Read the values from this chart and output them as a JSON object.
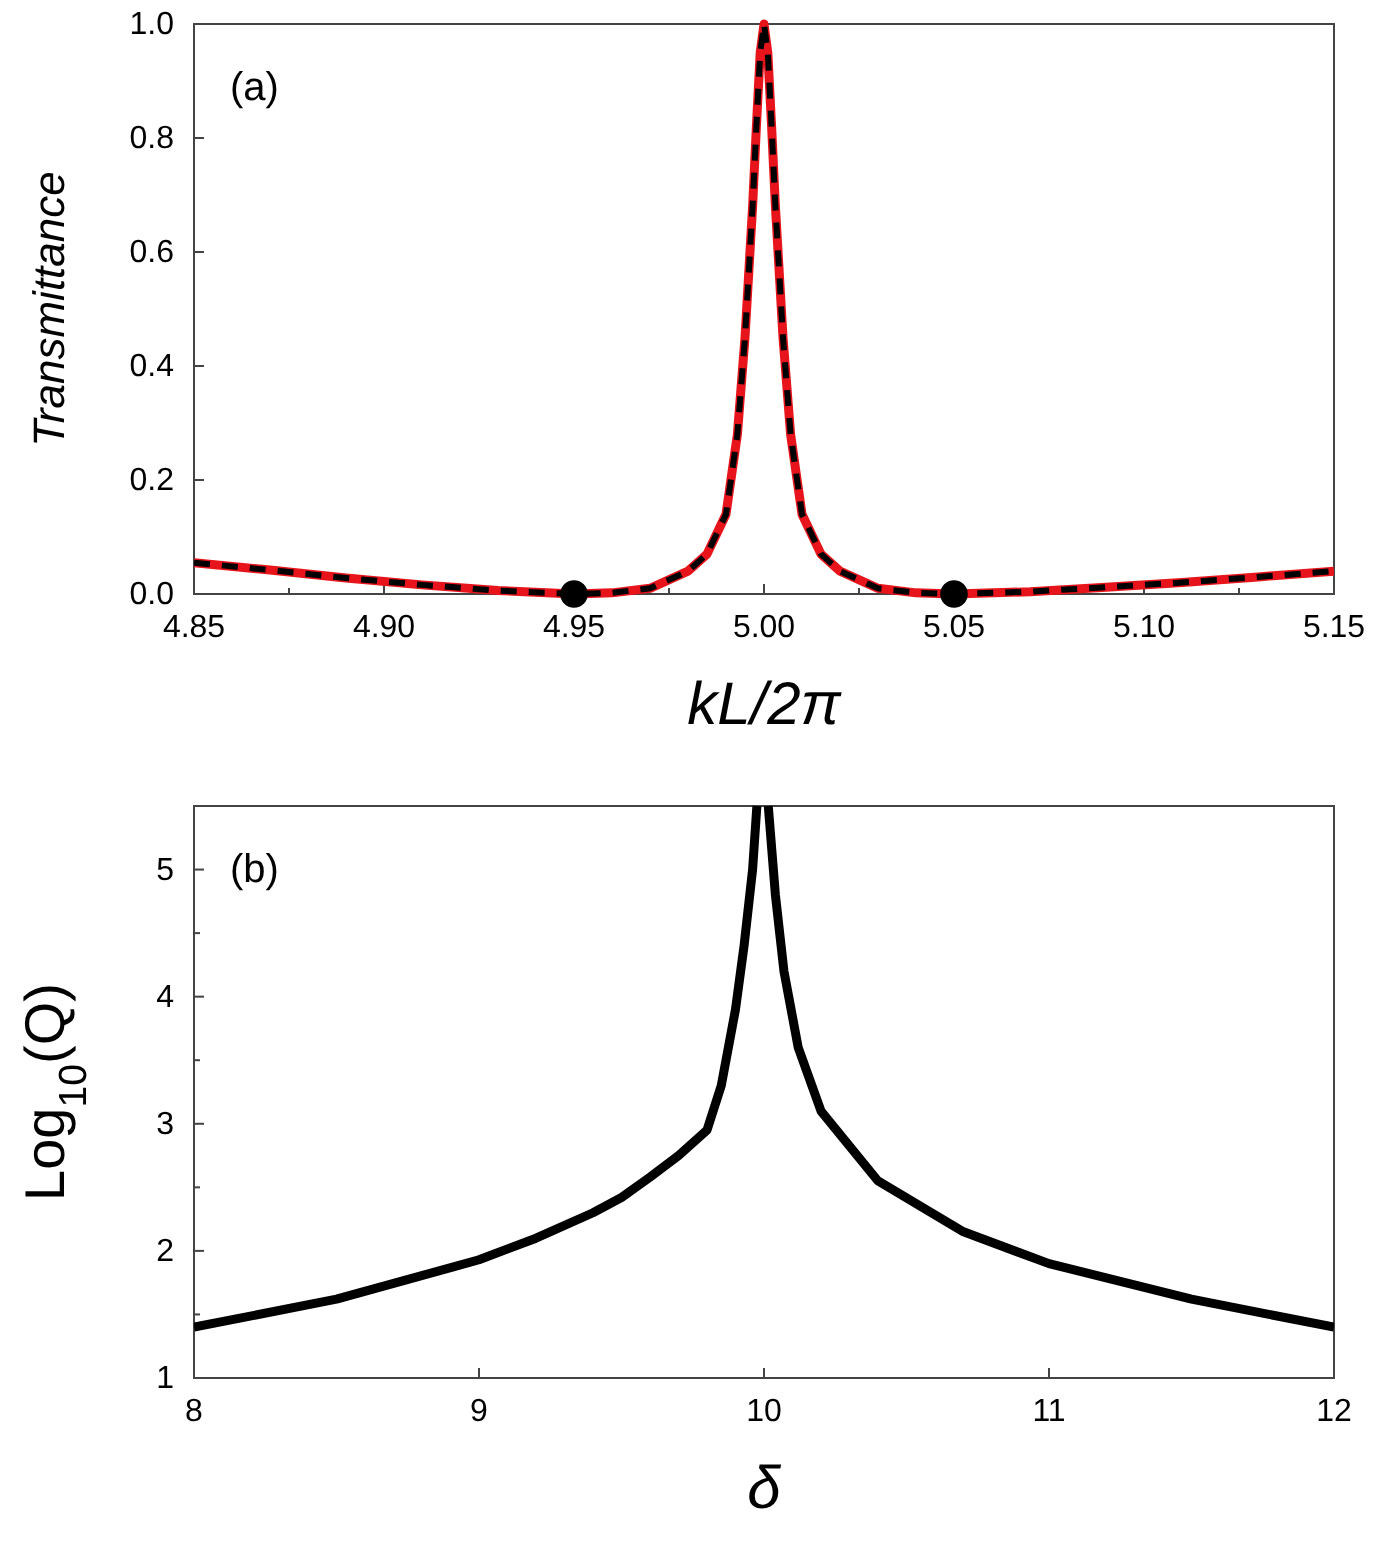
{
  "chart_data": [
    {
      "type": "line",
      "xlabel": "kL/2π",
      "ylabel": "Transmittance",
      "annotations": [
        "(a)"
      ],
      "xlim": [
        4.85,
        5.15
      ],
      "ylim": [
        0,
        1
      ],
      "xticks": [
        {
          "value": 4.85,
          "label": "4.85"
        },
        {
          "value": 4.875,
          "label": null
        },
        {
          "value": 4.9,
          "label": "4.90"
        },
        {
          "value": 4.925,
          "label": null
        },
        {
          "value": 4.95,
          "label": "4.95"
        },
        {
          "value": 4.975,
          "label": null
        },
        {
          "value": 5,
          "label": "5.00"
        },
        {
          "value": 5.025,
          "label": null
        },
        {
          "value": 5.05,
          "label": "5.05"
        },
        {
          "value": 5.075,
          "label": null
        },
        {
          "value": 5.1,
          "label": "5.10"
        },
        {
          "value": 5.125,
          "label": null
        },
        {
          "value": 5.15,
          "label": "5.15"
        }
      ],
      "yticks": [
        {
          "value": 0,
          "label": "0.0"
        },
        {
          "value": 0.2,
          "label": "0.2"
        },
        {
          "value": 0.4,
          "label": "0.4"
        },
        {
          "value": 0.6,
          "label": "0.6"
        },
        {
          "value": 0.8,
          "label": "0.8"
        },
        {
          "value": 1,
          "label": "1.0"
        }
      ],
      "series": [
        {
          "type": "line",
          "color": "#e8141b",
          "line_style": "solid",
          "x": [
            4.85,
            4.87,
            4.89,
            4.91,
            4.93,
            4.95,
            4.96,
            4.97,
            4.98,
            4.985,
            4.99,
            4.993,
            4.995,
            4.997,
            4.998,
            4.999,
            5.0,
            5.001,
            5.002,
            5.003,
            5.005,
            5.007,
            5.01,
            5.015,
            5.02,
            5.03,
            5.04,
            5.05,
            5.07,
            5.09,
            5.11,
            5.13,
            5.15
          ],
          "values": [
            0.055,
            0.042,
            0.028,
            0.016,
            0.006,
            0.0,
            0.002,
            0.01,
            0.04,
            0.07,
            0.14,
            0.28,
            0.45,
            0.68,
            0.82,
            0.95,
            1.0,
            0.95,
            0.82,
            0.68,
            0.45,
            0.28,
            0.14,
            0.07,
            0.04,
            0.01,
            0.002,
            0.0,
            0.004,
            0.012,
            0.02,
            0.03,
            0.04
          ]
        },
        {
          "type": "line",
          "color": "#000000",
          "line_style": "dashed",
          "x": [
            4.85,
            4.87,
            4.89,
            4.91,
            4.93,
            4.95,
            4.96,
            4.97,
            4.98,
            4.985,
            4.99,
            4.993,
            4.995,
            4.997,
            4.998,
            4.999,
            5.0,
            5.001,
            5.002,
            5.003,
            5.005,
            5.007,
            5.01,
            5.015,
            5.02,
            5.03,
            5.04,
            5.05,
            5.07,
            5.09,
            5.11,
            5.13,
            5.15
          ],
          "values": [
            0.055,
            0.042,
            0.028,
            0.016,
            0.006,
            0.0,
            0.002,
            0.01,
            0.04,
            0.07,
            0.14,
            0.28,
            0.45,
            0.68,
            0.82,
            0.95,
            1.0,
            0.95,
            0.82,
            0.68,
            0.45,
            0.28,
            0.14,
            0.07,
            0.04,
            0.01,
            0.002,
            0.0,
            0.004,
            0.012,
            0.02,
            0.03,
            0.04
          ]
        },
        {
          "type": "scatter",
          "color": "#000000",
          "marker": "circle",
          "x": [
            4.95,
            5.05
          ],
          "values": [
            0,
            0
          ]
        }
      ]
    },
    {
      "type": "line",
      "xlabel": "δ",
      "ylabel": "Log$_{10}$(Q)",
      "annotations": [
        "(b)"
      ],
      "xlim": [
        8,
        12
      ],
      "ylim": [
        1,
        5.5
      ],
      "xticks": [
        8,
        9,
        10,
        11,
        12
      ],
      "yticks": [
        1,
        {
          "value": 1.5,
          "label": null
        },
        2,
        {
          "value": 2.5,
          "label": null
        },
        3,
        {
          "value": 3.5,
          "label": null
        },
        4,
        {
          "value": 4.5,
          "label": null
        },
        5
      ],
      "series": [
        {
          "type": "line",
          "color": "#000000",
          "line_style": "solid",
          "x": [
            8,
            8.5,
            9,
            9.2,
            9.4,
            9.5,
            9.6,
            9.7,
            9.8,
            9.85,
            9.9,
            9.93,
            9.96,
            9.975
          ],
          "values": [
            1.4,
            1.62,
            1.93,
            2.1,
            2.3,
            2.42,
            2.58,
            2.75,
            2.95,
            3.3,
            3.9,
            4.4,
            5.0,
            5.5
          ]
        },
        {
          "type": "line",
          "color": "#000000",
          "line_style": "solid",
          "x": [
            10.015,
            10.04,
            10.07,
            10.12,
            10.2,
            10.4,
            10.7,
            11,
            11.5,
            12
          ],
          "values": [
            5.5,
            4.8,
            4.2,
            3.6,
            3.1,
            2.55,
            2.15,
            1.9,
            1.62,
            1.4
          ]
        }
      ]
    }
  ]
}
